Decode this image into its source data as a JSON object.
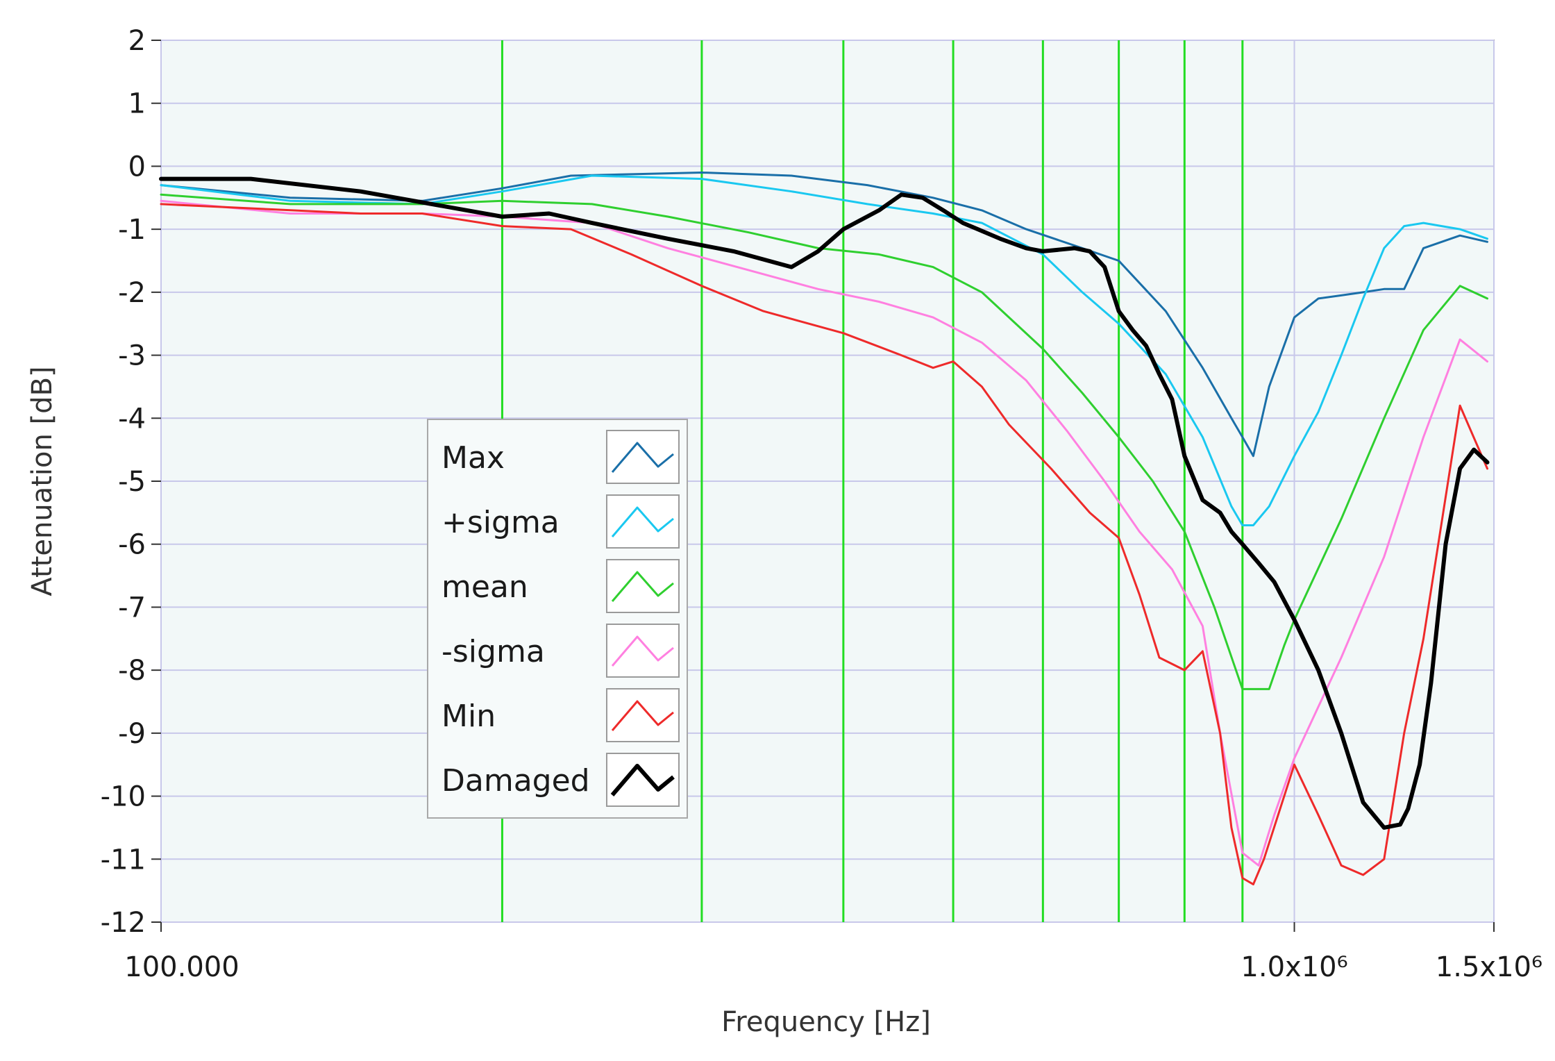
{
  "chart_data": {
    "type": "line",
    "title": "",
    "xlabel": "Frequency [Hz]",
    "ylabel": "Attenuation [dB]",
    "x_scale": "log",
    "xlim": [
      100000,
      1500000
    ],
    "ylim": [
      -12,
      2
    ],
    "y_ticks": [
      2,
      1,
      0,
      -1,
      -2,
      -3,
      -4,
      -5,
      -6,
      -7,
      -8,
      -9,
      -10,
      -11,
      -12
    ],
    "y_tick_labels": [
      "2",
      "1",
      "0",
      "-1",
      "-2",
      "-3",
      "-4",
      "-5",
      "-6",
      "-7",
      "-8",
      "-9",
      "-10",
      "-11",
      "-12"
    ],
    "x_ticks": [
      100000,
      1000000,
      1500000
    ],
    "x_tick_labels": [
      "100.000",
      "1.0x10⁶",
      "1.5x10⁶"
    ],
    "x_minor_gridlines": [
      200000,
      300000,
      400000,
      500000,
      600000,
      700000,
      800000,
      900000
    ],
    "marker_lines": {
      "color": "#22dd22",
      "x": [
        200000,
        300000,
        400000,
        500000,
        600000,
        700000,
        800000,
        900000
      ]
    },
    "grid": true,
    "legend_position": "center-left",
    "colors": {
      "plot_background": "#f2f8f8",
      "grid": "#c8c8ea",
      "axis_title": "#8b1a1a"
    },
    "series": [
      {
        "name": "Max",
        "color": "#1a6fa8",
        "width": 3,
        "x": [
          100000,
          130000,
          170000,
          200000,
          230000,
          300000,
          360000,
          420000,
          480000,
          530000,
          580000,
          650000,
          700000,
          770000,
          830000,
          880000,
          900000,
          920000,
          950000,
          1000000,
          1050000,
          1100000,
          1150000,
          1200000,
          1250000,
          1300000,
          1400000,
          1480000
        ],
        "y": [
          -0.3,
          -0.5,
          -0.55,
          -0.35,
          -0.15,
          -0.1,
          -0.15,
          -0.3,
          -0.5,
          -0.7,
          -1.0,
          -1.3,
          -1.5,
          -2.3,
          -3.2,
          -4.0,
          -4.3,
          -4.6,
          -3.5,
          -2.4,
          -2.1,
          -2.05,
          -2.0,
          -1.95,
          -1.95,
          -1.3,
          -1.1,
          -1.2
        ]
      },
      {
        "name": "+sigma",
        "color": "#1ac8f0",
        "width": 3,
        "x": [
          100000,
          130000,
          170000,
          200000,
          240000,
          300000,
          360000,
          420000,
          480000,
          530000,
          600000,
          650000,
          700000,
          770000,
          830000,
          880000,
          900000,
          920000,
          950000,
          1000000,
          1050000,
          1100000,
          1150000,
          1200000,
          1250000,
          1300000,
          1400000,
          1480000
        ],
        "y": [
          -0.3,
          -0.55,
          -0.6,
          -0.4,
          -0.15,
          -0.2,
          -0.4,
          -0.6,
          -0.75,
          -0.9,
          -1.4,
          -2.0,
          -2.5,
          -3.3,
          -4.3,
          -5.4,
          -5.7,
          -5.7,
          -5.4,
          -4.6,
          -3.9,
          -3.0,
          -2.1,
          -1.3,
          -0.95,
          -0.9,
          -1.0,
          -1.15
        ]
      },
      {
        "name": "mean",
        "color": "#2fcf2f",
        "width": 3,
        "x": [
          100000,
          130000,
          170000,
          200000,
          240000,
          280000,
          330000,
          380000,
          430000,
          480000,
          530000,
          600000,
          650000,
          700000,
          750000,
          800000,
          850000,
          900000,
          950000,
          980000,
          1000000,
          1100000,
          1200000,
          1300000,
          1400000,
          1480000
        ],
        "y": [
          -0.45,
          -0.6,
          -0.6,
          -0.55,
          -0.6,
          -0.8,
          -1.05,
          -1.3,
          -1.4,
          -1.6,
          -2.0,
          -2.9,
          -3.6,
          -4.3,
          -5.0,
          -5.8,
          -7.0,
          -8.3,
          -8.3,
          -7.6,
          -7.2,
          -5.6,
          -4.0,
          -2.6,
          -1.9,
          -2.1
        ]
      },
      {
        "name": "-sigma",
        "color": "#ff80e0",
        "width": 3,
        "x": [
          100000,
          130000,
          170000,
          200000,
          240000,
          280000,
          330000,
          380000,
          430000,
          480000,
          530000,
          580000,
          630000,
          680000,
          730000,
          780000,
          830000,
          860000,
          900000,
          930000,
          960000,
          1000000,
          1100000,
          1200000,
          1300000,
          1400000,
          1480000
        ],
        "y": [
          -0.55,
          -0.75,
          -0.75,
          -0.8,
          -0.9,
          -1.3,
          -1.65,
          -1.95,
          -2.15,
          -2.4,
          -2.8,
          -3.4,
          -4.2,
          -5.0,
          -5.8,
          -6.4,
          -7.3,
          -9.0,
          -10.9,
          -11.1,
          -10.3,
          -9.4,
          -7.8,
          -6.2,
          -4.3,
          -2.75,
          -3.1
        ]
      },
      {
        "name": "Min",
        "color": "#ee2a2a",
        "width": 3,
        "x": [
          100000,
          150000,
          170000,
          200000,
          230000,
          260000,
          300000,
          340000,
          400000,
          450000,
          480000,
          500000,
          530000,
          560000,
          610000,
          660000,
          700000,
          730000,
          760000,
          800000,
          830000,
          860000,
          880000,
          900000,
          920000,
          940000,
          1000000,
          1050000,
          1100000,
          1150000,
          1200000,
          1250000,
          1300000,
          1400000,
          1480000
        ],
        "y": [
          -0.6,
          -0.75,
          -0.75,
          -0.95,
          -1.0,
          -1.4,
          -1.9,
          -2.3,
          -2.65,
          -3.0,
          -3.2,
          -3.1,
          -3.5,
          -4.1,
          -4.8,
          -5.5,
          -5.9,
          -6.8,
          -7.8,
          -8.0,
          -7.7,
          -9.0,
          -10.5,
          -11.3,
          -11.4,
          -11.0,
          -9.5,
          -10.3,
          -11.1,
          -11.25,
          -11.0,
          -9.0,
          -7.5,
          -3.8,
          -4.8
        ]
      },
      {
        "name": "Damaged",
        "color": "#000000",
        "width": 6,
        "x": [
          100000,
          120000,
          150000,
          200000,
          220000,
          240000,
          280000,
          320000,
          360000,
          380000,
          400000,
          430000,
          450000,
          470000,
          490000,
          510000,
          550000,
          580000,
          600000,
          640000,
          660000,
          680000,
          700000,
          720000,
          740000,
          760000,
          780000,
          800000,
          830000,
          860000,
          880000,
          900000,
          930000,
          960000,
          1000000,
          1050000,
          1100000,
          1150000,
          1200000,
          1240000,
          1260000,
          1290000,
          1320000,
          1360000,
          1400000,
          1440000,
          1480000
        ],
        "y": [
          -0.2,
          -0.2,
          -0.4,
          -0.8,
          -0.75,
          -0.9,
          -1.15,
          -1.35,
          -1.6,
          -1.35,
          -1.0,
          -0.7,
          -0.45,
          -0.5,
          -0.7,
          -0.9,
          -1.15,
          -1.3,
          -1.35,
          -1.3,
          -1.35,
          -1.6,
          -2.3,
          -2.6,
          -2.85,
          -3.3,
          -3.7,
          -4.6,
          -5.3,
          -5.5,
          -5.8,
          -6.0,
          -6.3,
          -6.6,
          -7.2,
          -8.0,
          -9.0,
          -10.1,
          -10.5,
          -10.45,
          -10.2,
          -9.5,
          -8.2,
          -6.0,
          -4.8,
          -4.5,
          -4.7
        ]
      }
    ]
  }
}
